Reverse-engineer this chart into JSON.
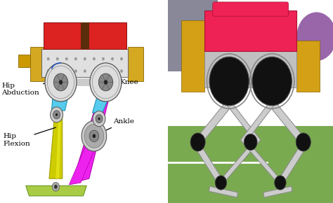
{
  "figure_width": 4.74,
  "figure_height": 2.9,
  "dpi": 100,
  "bg_color": "#ffffff",
  "left_bg": "#ffffff",
  "right_bg": "#8aab6a",
  "labels": {
    "hip_abduction": "Hip\nAbduction",
    "hip_flexion": "Hip\nFlexion",
    "knee": "Knee",
    "ankle": "Ankle"
  },
  "label_fontsize": 7.5,
  "colors": {
    "torso_red": "#dd2222",
    "torso_gray": "#e0e0e0",
    "torso_dark_gray": "#b0b0b0",
    "torso_brown": "#5a2e0a",
    "torso_yellow": "#d4a820",
    "cyan_leg": "#55ccee",
    "yellow_leg": "#cccc00",
    "magenta_leg": "#ee22ee",
    "foot_green": "#aacc44",
    "joint_outer": "#aaaaaa",
    "joint_inner": "#777777",
    "joint_center": "#333333",
    "arrow_color": "#222222",
    "arc_color": "#2255bb"
  }
}
